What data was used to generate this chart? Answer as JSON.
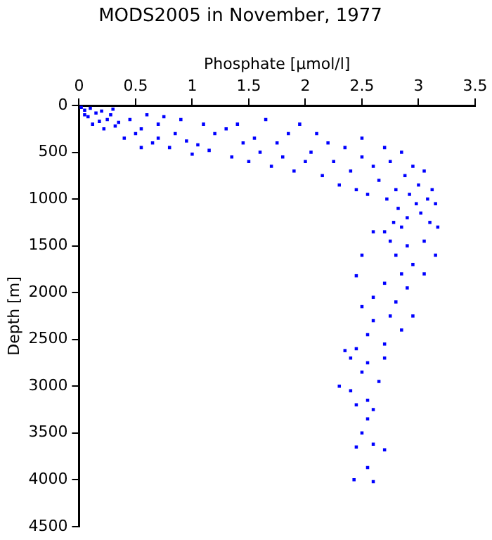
{
  "chart_data": {
    "type": "scatter",
    "title": "MODS2005 in November, 1977",
    "xlabel": "Phosphate [µmol/l]",
    "ylabel": "Depth [m]",
    "xlim": [
      0,
      3.5
    ],
    "xticks": [
      0,
      0.5,
      1,
      1.5,
      2,
      2.5,
      3,
      3.5
    ],
    "ylim": [
      4500,
      0
    ],
    "yticks": [
      0,
      500,
      1000,
      1500,
      2000,
      2500,
      3000,
      3500,
      4000,
      4500
    ],
    "grid": false,
    "legend": false,
    "marker": "square",
    "series": [
      {
        "color": "#0000ff",
        "x": [
          0.02,
          0.05,
          0.1,
          0.15,
          0.08,
          0.2,
          0.25,
          0.3,
          0.12,
          0.22,
          0.35,
          0.05,
          0.18,
          0.28,
          0.32,
          0.4,
          0.45,
          0.5,
          0.55,
          0.6,
          0.65,
          0.7,
          0.75,
          0.8,
          0.85,
          0.9,
          0.95,
          1.0,
          0.55,
          0.7,
          1.05,
          1.1,
          1.15,
          1.2,
          1.3,
          1.35,
          1.4,
          1.45,
          1.5,
          1.55,
          1.6,
          1.65,
          1.7,
          1.75,
          1.8,
          1.85,
          1.9,
          1.95,
          2.0,
          2.05,
          2.1,
          2.15,
          2.2,
          2.25,
          2.3,
          2.35,
          2.4,
          2.45,
          2.5,
          2.5,
          2.55,
          2.6,
          2.65,
          2.7,
          2.72,
          2.75,
          2.8,
          2.82,
          2.85,
          2.88,
          2.9,
          2.92,
          2.95,
          2.98,
          3.0,
          3.02,
          3.05,
          3.08,
          3.1,
          3.12,
          3.15,
          3.17,
          2.78,
          2.85,
          2.7,
          2.6,
          2.75,
          2.9,
          3.05,
          3.15,
          2.5,
          2.8,
          2.95,
          2.85,
          3.05,
          2.45,
          2.7,
          2.9,
          2.6,
          2.8,
          2.5,
          2.75,
          2.95,
          2.6,
          2.85,
          2.55,
          2.7,
          2.45,
          2.35,
          2.4,
          2.55,
          2.7,
          2.5,
          2.65,
          2.3,
          2.4,
          2.55,
          2.6,
          2.45,
          2.55,
          2.5,
          2.45,
          2.6,
          2.7,
          2.55,
          2.43,
          2.6
        ],
        "values": [
          20,
          50,
          30,
          80,
          120,
          60,
          150,
          40,
          200,
          250,
          180,
          100,
          170,
          100,
          220,
          350,
          150,
          300,
          250,
          100,
          400,
          200,
          120,
          450,
          300,
          150,
          380,
          520,
          450,
          350,
          420,
          200,
          480,
          300,
          250,
          550,
          200,
          400,
          600,
          350,
          500,
          150,
          650,
          400,
          550,
          300,
          700,
          200,
          600,
          500,
          300,
          750,
          400,
          600,
          850,
          450,
          700,
          900,
          550,
          350,
          950,
          650,
          800,
          450,
          1000,
          600,
          900,
          1100,
          500,
          750,
          1200,
          950,
          650,
          1050,
          850,
          1150,
          700,
          1000,
          1250,
          900,
          1050,
          1300,
          1250,
          1300,
          1350,
          1350,
          1450,
          1500,
          1450,
          1600,
          1600,
          1600,
          1700,
          1800,
          1800,
          1820,
          1900,
          1950,
          2050,
          2100,
          2150,
          2250,
          2250,
          2300,
          2400,
          2450,
          2550,
          2600,
          2620,
          2700,
          2750,
          2700,
          2850,
          2950,
          3000,
          3050,
          3150,
          3250,
          3200,
          3350,
          3500,
          3650,
          3620,
          3680,
          3870,
          4000,
          4020
        ]
      }
    ]
  }
}
